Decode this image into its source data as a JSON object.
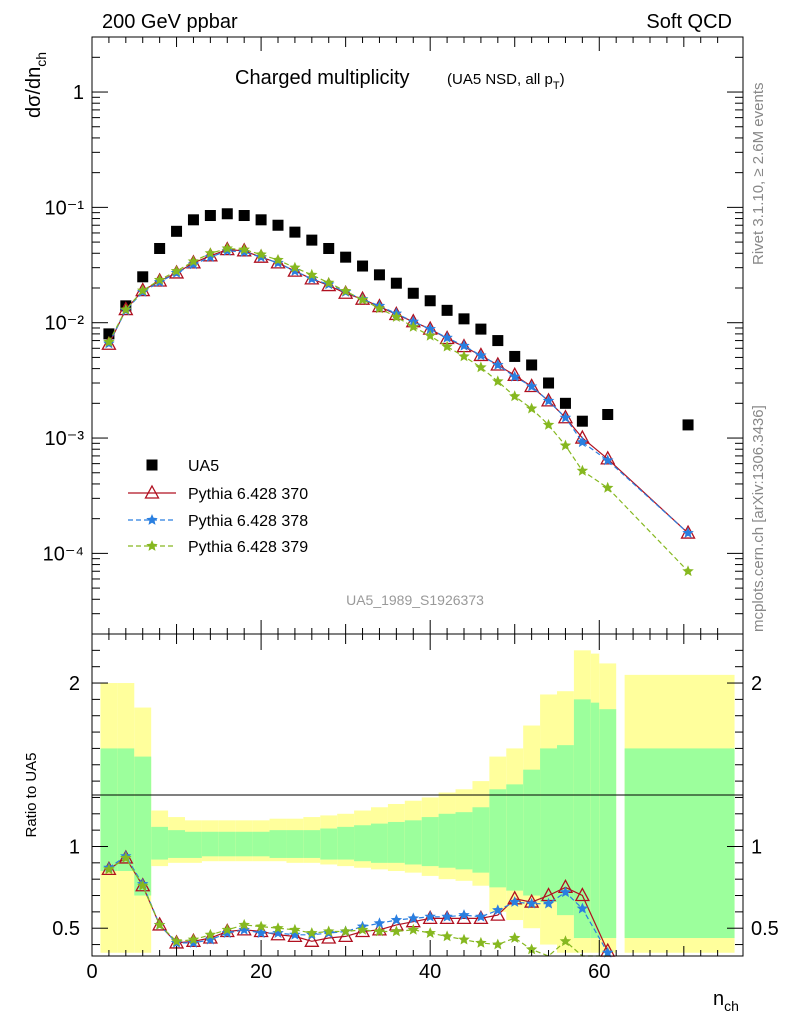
{
  "header": {
    "left": "200 GeV ppbar",
    "right": "Soft QCD"
  },
  "side_labels": {
    "rivet": "Rivet 3.1.10, ≥ 2.6M events",
    "mcplots": "mcplots.cern.ch [arXiv:1306.3436]"
  },
  "chart_data": [
    {
      "type": "scatter",
      "title_main": "Charged multiplicity",
      "title_sub": "(UA5 NSD, all p",
      "title_sub_t": "T",
      "title_sub_close": ")",
      "ylabel": "dσ/dn",
      "ylabel_sub": "ch",
      "yscale": "log",
      "xlim": [
        0,
        77
      ],
      "ylim": [
        2e-05,
        3
      ],
      "y_tick_labels": [
        "10⁻⁴",
        "10⁻³",
        "10⁻²",
        "10⁻¹",
        "1"
      ],
      "y_ticks": [
        0.0001,
        0.001,
        0.01,
        0.1,
        1
      ],
      "legend_position": "lower-left",
      "watermark": "UA5_1989_S1926373",
      "series": [
        {
          "name": "UA5",
          "color": "#000000",
          "marker": "square",
          "x": [
            2,
            4,
            6,
            8,
            10,
            12,
            14,
            16,
            18,
            20,
            22,
            24,
            26,
            28,
            30,
            32,
            34,
            36,
            38,
            40,
            42,
            44,
            46,
            48,
            50,
            52,
            54,
            56,
            58,
            61,
            70.5
          ],
          "y": [
            0.008,
            0.014,
            0.025,
            0.044,
            0.062,
            0.078,
            0.085,
            0.088,
            0.085,
            0.078,
            0.07,
            0.061,
            0.052,
            0.044,
            0.037,
            0.031,
            0.026,
            0.022,
            0.018,
            0.0155,
            0.0128,
            0.0108,
            0.0088,
            0.007,
            0.0051,
            0.0043,
            0.003,
            0.002,
            0.0014,
            0.0016,
            0.0013
          ]
        },
        {
          "name": "Pythia 6.428 370",
          "color": "#b01020",
          "marker": "triangle",
          "x": [
            2,
            4,
            6,
            8,
            10,
            12,
            14,
            16,
            18,
            20,
            22,
            24,
            26,
            28,
            30,
            32,
            34,
            36,
            38,
            40,
            42,
            44,
            46,
            48,
            50,
            52,
            54,
            56,
            58,
            61,
            70.5
          ],
          "y": [
            0.0065,
            0.013,
            0.019,
            0.023,
            0.027,
            0.033,
            0.038,
            0.043,
            0.042,
            0.037,
            0.033,
            0.028,
            0.024,
            0.021,
            0.018,
            0.016,
            0.0138,
            0.0118,
            0.0102,
            0.0088,
            0.0073,
            0.0062,
            0.0052,
            0.0043,
            0.0035,
            0.0028,
            0.0021,
            0.0015,
            0.001,
            0.00066,
            0.00015
          ]
        },
        {
          "name": "Pythia 6.428 378",
          "color": "#2a7fe0",
          "marker": "star",
          "dashed": true,
          "x": [
            2,
            4,
            6,
            8,
            10,
            12,
            14,
            16,
            18,
            20,
            22,
            24,
            26,
            28,
            30,
            32,
            34,
            36,
            38,
            40,
            42,
            44,
            46,
            48,
            50,
            52,
            54,
            56,
            58,
            61,
            70.5
          ],
          "y": [
            0.0066,
            0.0128,
            0.0185,
            0.0225,
            0.027,
            0.032,
            0.037,
            0.042,
            0.041,
            0.037,
            0.033,
            0.028,
            0.024,
            0.0215,
            0.0185,
            0.016,
            0.014,
            0.012,
            0.0102,
            0.0088,
            0.0074,
            0.0063,
            0.0052,
            0.0043,
            0.0034,
            0.0028,
            0.0021,
            0.0015,
            0.00092,
            0.00064,
            0.00015
          ]
        },
        {
          "name": "Pythia 6.428 379",
          "color": "#86b820",
          "marker": "star",
          "dashed": true,
          "x": [
            2,
            4,
            6,
            8,
            10,
            12,
            14,
            16,
            18,
            20,
            22,
            24,
            26,
            28,
            30,
            32,
            34,
            36,
            38,
            40,
            42,
            44,
            46,
            48,
            50,
            52,
            54,
            56,
            58,
            61,
            70.5
          ],
          "y": [
            0.0068,
            0.013,
            0.019,
            0.0235,
            0.028,
            0.034,
            0.04,
            0.044,
            0.043,
            0.039,
            0.035,
            0.03,
            0.026,
            0.0222,
            0.0188,
            0.0158,
            0.0133,
            0.0112,
            0.0092,
            0.0077,
            0.0062,
            0.0051,
            0.0041,
            0.0031,
            0.0023,
            0.0018,
            0.0013,
            0.00086,
            0.00052,
            0.00037,
            7e-05
          ]
        }
      ]
    },
    {
      "type": "line",
      "ylabel": "Ratio to UA5",
      "xlabel": "n",
      "xlabel_sub": "ch",
      "xlim": [
        0,
        77
      ],
      "ylim": [
        0.33,
        2.3
      ],
      "x_ticks": [
        0,
        20,
        40,
        60
      ],
      "x_tick_labels": [
        "0",
        "20",
        "40",
        "60"
      ],
      "y_ticks": [
        0.5,
        1,
        2
      ],
      "y_tick_labels": [
        "0.5",
        "1",
        "2"
      ],
      "band_colors": {
        "inner": "#9cff9c",
        "outer": "#ffff9c"
      },
      "bands": [
        {
          "x0": 1,
          "x1": 3,
          "outer": [
            0.35,
            2.0
          ],
          "inner": [
            0.85,
            1.6
          ]
        },
        {
          "x0": 3,
          "x1": 5,
          "outer": [
            0.35,
            2.0
          ],
          "inner": [
            0.85,
            1.6
          ]
        },
        {
          "x0": 5,
          "x1": 7,
          "outer": [
            0.35,
            1.85
          ],
          "inner": [
            0.7,
            1.55
          ]
        },
        {
          "x0": 7,
          "x1": 9,
          "outer": [
            0.88,
            1.22
          ],
          "inner": [
            0.92,
            1.12
          ]
        },
        {
          "x0": 9,
          "x1": 11,
          "outer": [
            0.9,
            1.18
          ],
          "inner": [
            0.93,
            1.1
          ]
        },
        {
          "x0": 11,
          "x1": 13,
          "outer": [
            0.9,
            1.16
          ],
          "inner": [
            0.93,
            1.09
          ]
        },
        {
          "x0": 13,
          "x1": 15,
          "outer": [
            0.91,
            1.16
          ],
          "inner": [
            0.94,
            1.09
          ]
        },
        {
          "x0": 15,
          "x1": 17,
          "outer": [
            0.91,
            1.16
          ],
          "inner": [
            0.94,
            1.09
          ]
        },
        {
          "x0": 17,
          "x1": 19,
          "outer": [
            0.91,
            1.16
          ],
          "inner": [
            0.94,
            1.09
          ]
        },
        {
          "x0": 19,
          "x1": 21,
          "outer": [
            0.91,
            1.16
          ],
          "inner": [
            0.94,
            1.09
          ]
        },
        {
          "x0": 21,
          "x1": 23,
          "outer": [
            0.91,
            1.17
          ],
          "inner": [
            0.93,
            1.1
          ]
        },
        {
          "x0": 23,
          "x1": 25,
          "outer": [
            0.9,
            1.17
          ],
          "inner": [
            0.93,
            1.1
          ]
        },
        {
          "x0": 25,
          "x1": 27,
          "outer": [
            0.9,
            1.18
          ],
          "inner": [
            0.93,
            1.1
          ]
        },
        {
          "x0": 27,
          "x1": 29,
          "outer": [
            0.89,
            1.19
          ],
          "inner": [
            0.92,
            1.11
          ]
        },
        {
          "x0": 29,
          "x1": 31,
          "outer": [
            0.88,
            1.2
          ],
          "inner": [
            0.92,
            1.12
          ]
        },
        {
          "x0": 31,
          "x1": 33,
          "outer": [
            0.87,
            1.22
          ],
          "inner": [
            0.91,
            1.13
          ]
        },
        {
          "x0": 33,
          "x1": 35,
          "outer": [
            0.86,
            1.24
          ],
          "inner": [
            0.9,
            1.14
          ]
        },
        {
          "x0": 35,
          "x1": 37,
          "outer": [
            0.85,
            1.26
          ],
          "inner": [
            0.9,
            1.15
          ]
        },
        {
          "x0": 37,
          "x1": 39,
          "outer": [
            0.84,
            1.28
          ],
          "inner": [
            0.89,
            1.16
          ]
        },
        {
          "x0": 39,
          "x1": 41,
          "outer": [
            0.82,
            1.3
          ],
          "inner": [
            0.88,
            1.18
          ]
        },
        {
          "x0": 41,
          "x1": 43,
          "outer": [
            0.8,
            1.33
          ],
          "inner": [
            0.87,
            1.2
          ]
        },
        {
          "x0": 43,
          "x1": 45,
          "outer": [
            0.79,
            1.35
          ],
          "inner": [
            0.86,
            1.21
          ]
        },
        {
          "x0": 45,
          "x1": 47,
          "outer": [
            0.76,
            1.4
          ],
          "inner": [
            0.84,
            1.24
          ]
        },
        {
          "x0": 47,
          "x1": 49,
          "outer": [
            0.6,
            1.55
          ],
          "inner": [
            0.75,
            1.35
          ]
        },
        {
          "x0": 49,
          "x1": 51,
          "outer": [
            0.55,
            1.6
          ],
          "inner": [
            0.73,
            1.38
          ]
        },
        {
          "x0": 51,
          "x1": 53,
          "outer": [
            0.5,
            1.74
          ],
          "inner": [
            0.7,
            1.47
          ]
        },
        {
          "x0": 53,
          "x1": 55,
          "outer": [
            0.4,
            1.93
          ],
          "inner": [
            0.66,
            1.6
          ]
        },
        {
          "x0": 55,
          "x1": 57,
          "outer": [
            0.35,
            1.95
          ],
          "inner": [
            0.58,
            1.62
          ]
        },
        {
          "x0": 57,
          "x1": 59,
          "outer": [
            0.35,
            2.2
          ],
          "inner": [
            0.44,
            1.9
          ]
        },
        {
          "x0": 59,
          "x1": 60,
          "outer": [
            0.35,
            2.18
          ],
          "inner": [
            0.44,
            1.88
          ]
        },
        {
          "x0": 60,
          "x1": 62,
          "outer": [
            0.35,
            2.12
          ],
          "inner": [
            0.44,
            1.84
          ]
        },
        {
          "x0": 63,
          "x1": 76,
          "outer": [
            0.35,
            2.05
          ],
          "inner": [
            0.44,
            1.6
          ]
        }
      ],
      "series": [
        {
          "name": "Pythia 6.428 370",
          "color": "#b01020",
          "marker": "triangle",
          "x": [
            2,
            4,
            6,
            8,
            10,
            12,
            14,
            16,
            18,
            20,
            22,
            24,
            26,
            28,
            30,
            32,
            34,
            36,
            38,
            40,
            42,
            44,
            46,
            48,
            50,
            52,
            54,
            56,
            58,
            61
          ],
          "y": [
            0.86,
            0.93,
            0.76,
            0.52,
            0.41,
            0.42,
            0.44,
            0.48,
            0.49,
            0.48,
            0.46,
            0.45,
            0.42,
            0.44,
            0.45,
            0.48,
            0.49,
            0.52,
            0.54,
            0.56,
            0.56,
            0.56,
            0.56,
            0.58,
            0.68,
            0.66,
            0.7,
            0.75,
            0.7,
            0.36
          ]
        },
        {
          "name": "Pythia 6.428 378",
          "color": "#2a7fe0",
          "marker": "star",
          "dashed": true,
          "x": [
            2,
            4,
            6,
            8,
            10,
            12,
            14,
            16,
            18,
            20,
            22,
            24,
            26,
            28,
            30,
            32,
            34,
            36,
            38,
            40,
            42,
            44,
            46,
            48,
            50,
            52,
            54,
            56,
            58,
            61
          ],
          "y": [
            0.87,
            0.94,
            0.77,
            0.52,
            0.41,
            0.41,
            0.43,
            0.47,
            0.49,
            0.47,
            0.47,
            0.46,
            0.46,
            0.47,
            0.48,
            0.51,
            0.53,
            0.55,
            0.56,
            0.57,
            0.57,
            0.58,
            0.57,
            0.61,
            0.66,
            0.65,
            0.65,
            0.72,
            0.62,
            0.35
          ]
        },
        {
          "name": "Pythia 6.428 379",
          "color": "#86b820",
          "marker": "star",
          "dashed": true,
          "x": [
            2,
            4,
            6,
            8,
            10,
            12,
            14,
            16,
            18,
            20,
            22,
            24,
            26,
            28,
            30,
            32,
            34,
            36,
            38,
            40,
            42,
            44,
            46,
            48,
            50,
            52,
            54,
            56,
            58,
            61
          ],
          "y": [
            0.86,
            0.93,
            0.76,
            0.52,
            0.42,
            0.43,
            0.46,
            0.49,
            0.52,
            0.51,
            0.5,
            0.49,
            0.47,
            0.48,
            0.48,
            0.49,
            0.48,
            0.48,
            0.49,
            0.47,
            0.45,
            0.43,
            0.41,
            0.4,
            0.44,
            0.37,
            0.31,
            0.42,
            0.29,
            0.3
          ]
        }
      ]
    }
  ]
}
